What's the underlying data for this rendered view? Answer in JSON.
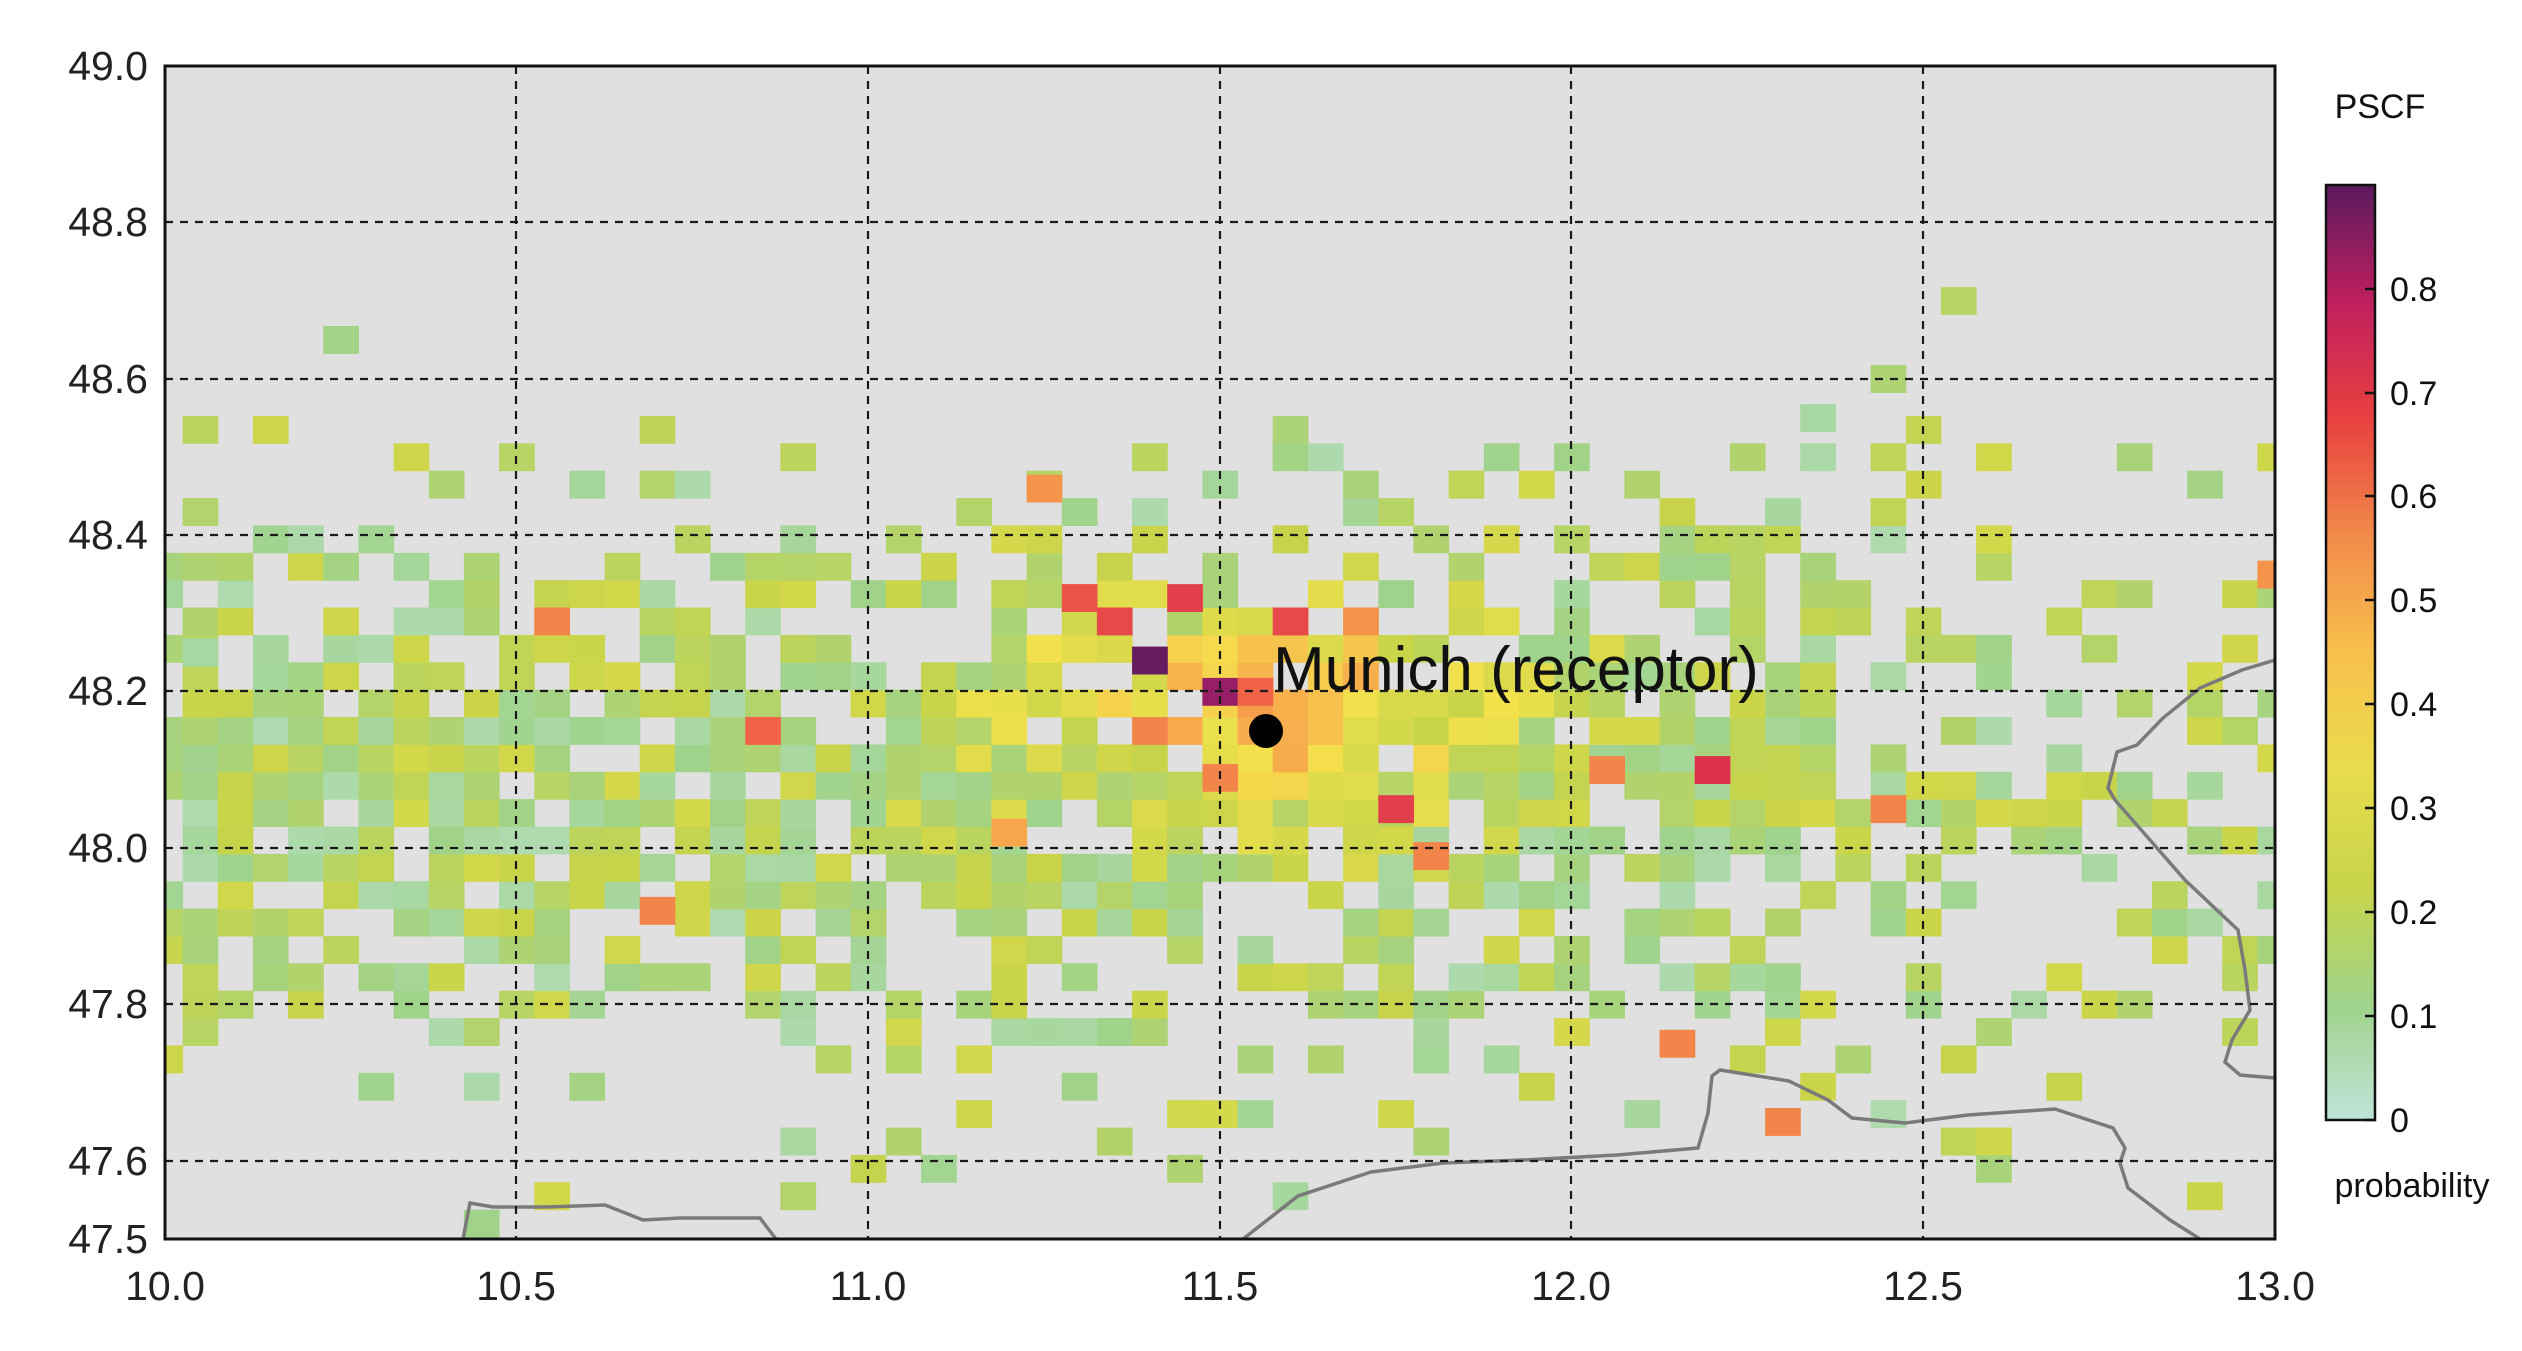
{
  "chart_data": {
    "type": "heatmap",
    "title": "",
    "xlabel": "",
    "ylabel": "",
    "xlim": [
      10.0,
      13.0
    ],
    "ylim": [
      47.5,
      49.0
    ],
    "x_ticks": [
      "10.0",
      "10.5",
      "11.0",
      "11.5",
      "12.0",
      "12.5",
      "13.0"
    ],
    "y_ticks": [
      "47.5",
      "47.6",
      "47.8",
      "48.0",
      "48.2",
      "48.4",
      "48.6",
      "48.8",
      "49.0"
    ],
    "x_tick_values": [
      10.0,
      10.5,
      11.0,
      11.5,
      12.0,
      12.5,
      13.0
    ],
    "y_tick_values": [
      47.5,
      47.6,
      47.8,
      48.0,
      48.2,
      48.4,
      48.6,
      48.8,
      49.0
    ],
    "grid": true,
    "background_color": "#e0e0e0",
    "cell_size_deg": [
      0.05,
      0.035
    ],
    "receptor": {
      "label": "Munich (receptor)",
      "lon": 11.57,
      "lat": 48.15
    },
    "colorbar": {
      "title": "PSCF",
      "label": "probability",
      "ticks": [
        "0",
        "0.1",
        "0.2",
        "0.3",
        "0.4",
        "0.5",
        "0.6",
        "0.7",
        "0.8"
      ],
      "tick_values": [
        0,
        0.1,
        0.2,
        0.3,
        0.4,
        0.5,
        0.6,
        0.7,
        0.8
      ],
      "range": [
        0,
        0.9
      ],
      "colors": [
        "#bfe3d9",
        "#9fd38a",
        "#c8d44a",
        "#f4e24c",
        "#f7a84c",
        "#ef5a47",
        "#d6244f",
        "#a01f68",
        "#5a1b5e"
      ]
    },
    "high_cells": [
      {
        "lon": 11.4,
        "lat": 48.24,
        "value": 0.88
      },
      {
        "lon": 11.5,
        "lat": 48.2,
        "value": 0.8
      },
      {
        "lon": 11.45,
        "lat": 48.32,
        "value": 0.62
      },
      {
        "lon": 11.35,
        "lat": 48.29,
        "value": 0.6
      },
      {
        "lon": 11.6,
        "lat": 48.29,
        "value": 0.6
      },
      {
        "lon": 11.3,
        "lat": 48.32,
        "value": 0.58
      },
      {
        "lon": 11.75,
        "lat": 48.05,
        "value": 0.62
      },
      {
        "lon": 12.2,
        "lat": 48.1,
        "value": 0.65
      },
      {
        "lon": 11.55,
        "lat": 48.2,
        "value": 0.55
      },
      {
        "lon": 11.4,
        "lat": 48.15,
        "value": 0.5
      },
      {
        "lon": 11.5,
        "lat": 48.09,
        "value": 0.5
      },
      {
        "lon": 11.8,
        "lat": 47.99,
        "value": 0.5
      },
      {
        "lon": 11.25,
        "lat": 48.46,
        "value": 0.48
      },
      {
        "lon": 10.55,
        "lat": 48.29,
        "value": 0.5
      },
      {
        "lon": 10.85,
        "lat": 48.15,
        "value": 0.55
      },
      {
        "lon": 10.7,
        "lat": 47.92,
        "value": 0.5
      },
      {
        "lon": 12.15,
        "lat": 47.75,
        "value": 0.5
      },
      {
        "lon": 12.3,
        "lat": 47.65,
        "value": 0.5
      },
      {
        "lon": 12.45,
        "lat": 48.05,
        "value": 0.5
      },
      {
        "lon": 13.0,
        "lat": 48.35,
        "value": 0.48
      },
      {
        "lon": 12.05,
        "lat": 48.1,
        "value": 0.5
      },
      {
        "lon": 11.7,
        "lat": 48.29,
        "value": 0.48
      },
      {
        "lon": 11.2,
        "lat": 48.02,
        "value": 0.45
      }
    ],
    "isolated_cells": [
      {
        "lon": 10.25,
        "lat": 48.65,
        "value": 0.12
      },
      {
        "lon": 10.05,
        "lat": 48.25,
        "value": 0.08
      },
      {
        "lon": 12.55,
        "lat": 48.7,
        "value": 0.18
      },
      {
        "lon": 12.45,
        "lat": 48.6,
        "value": 0.15
      },
      {
        "lon": 12.35,
        "lat": 48.55,
        "value": 0.08
      },
      {
        "lon": 12.25,
        "lat": 48.5,
        "value": 0.16
      }
    ]
  }
}
